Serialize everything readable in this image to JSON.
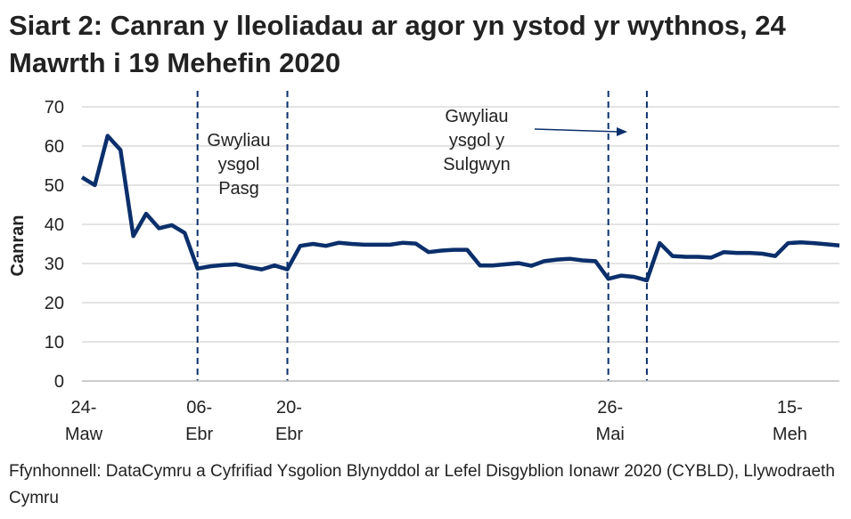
{
  "title": "Siart 2: Canran y lleoliadau ar agor yn ystod yr wythnos, 24 Mawrth i 19 Mehefin 2020",
  "source": "Ffynhonnell: DataCymru a Cyfrifiad Ysgolion Blynyddol ar Lefel Disgyblion Ionawr 2020 (CYBLD), Llywodraeth Cymru",
  "chart_data": {
    "type": "line",
    "ylabel": "Canran",
    "ylim": [
      0,
      70
    ],
    "yticks": [
      0,
      10,
      20,
      30,
      40,
      50,
      60,
      70
    ],
    "grid": true,
    "line_color": "#0b2f6b",
    "xticks": [
      {
        "index": 0,
        "line1": "24-",
        "line2": "Maw"
      },
      {
        "index": 9,
        "line1": "06-",
        "line2": "Ebr"
      },
      {
        "index": 16,
        "line1": "20-",
        "line2": "Ebr"
      },
      {
        "index": 41,
        "line1": "26-",
        "line2": "Mai"
      },
      {
        "index": 55,
        "line1": "15-",
        "line2": "Meh"
      }
    ],
    "vlines": [
      9,
      16,
      41,
      44
    ],
    "annotations": [
      {
        "lines": [
          "Gwyliau",
          "ysgol",
          "Pasg"
        ]
      },
      {
        "lines": [
          "Gwyliau",
          "ysgol y",
          "Sulgwyn"
        ]
      }
    ],
    "values": [
      52,
      50,
      62.6,
      59,
      37,
      42.7,
      39,
      39.8,
      37.8,
      28.7,
      29.3,
      29.6,
      29.8,
      29.1,
      28.5,
      29.5,
      28.5,
      34.5,
      35,
      34.5,
      35.3,
      35,
      34.8,
      34.8,
      34.8,
      35.3,
      35.1,
      32.9,
      33.3,
      33.5,
      33.5,
      29.5,
      29.5,
      29.8,
      30.1,
      29.4,
      30.6,
      31,
      31.2,
      30.8,
      30.6,
      26.1,
      26.9,
      26.6,
      25.7,
      35.2,
      31.9,
      31.7,
      31.7,
      31.5,
      32.9,
      32.7,
      32.7,
      32.5,
      31.9,
      35.2,
      35.4,
      35.2,
      34.9,
      34.6
    ]
  }
}
